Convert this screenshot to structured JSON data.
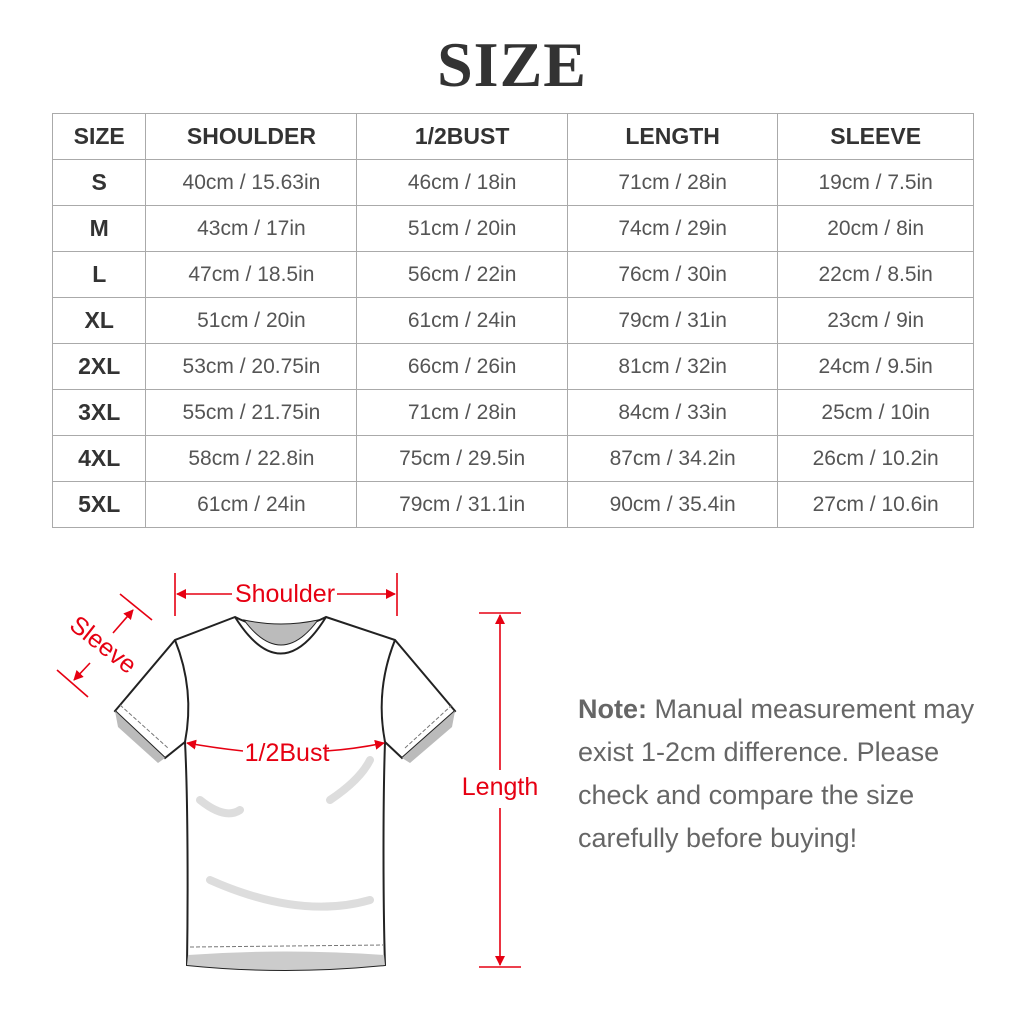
{
  "title": "SIZE",
  "table": {
    "headers": [
      "SIZE",
      "SHOULDER",
      "1/2BUST",
      "LENGTH",
      "SLEEVE"
    ],
    "rows": [
      [
        "S",
        "40cm / 15.63in",
        "46cm / 18in",
        "71cm / 28in",
        "19cm / 7.5in"
      ],
      [
        "M",
        "43cm / 17in",
        "51cm / 20in",
        "74cm / 29in",
        "20cm / 8in"
      ],
      [
        "L",
        "47cm / 18.5in",
        "56cm / 22in",
        "76cm / 30in",
        "22cm / 8.5in"
      ],
      [
        "XL",
        "51cm / 20in",
        "61cm / 24in",
        "79cm / 31in",
        "23cm / 9in"
      ],
      [
        "2XL",
        "53cm / 20.75in",
        "66cm / 26in",
        "81cm / 32in",
        "24cm / 9.5in"
      ],
      [
        "3XL",
        "55cm / 21.75in",
        "71cm / 28in",
        "84cm / 33in",
        "25cm / 10in"
      ],
      [
        "4XL",
        "58cm / 22.8in",
        "75cm / 29.5in",
        "87cm / 34.2in",
        "26cm / 10.2in"
      ],
      [
        "5XL",
        "61cm / 24in",
        "79cm / 31.1in",
        "90cm / 35.4in",
        "27cm / 10.6in"
      ]
    ]
  },
  "diagram": {
    "shoulder": "Shoulder",
    "sleeve": "Sleeve",
    "bust": "1/2Bust",
    "length": "Length",
    "accent_color": "#e60012"
  },
  "note": {
    "label": "Note:",
    "text": " Manual measurement may exist 1-2cm difference. Please check and compare the size carefully before buying!"
  }
}
